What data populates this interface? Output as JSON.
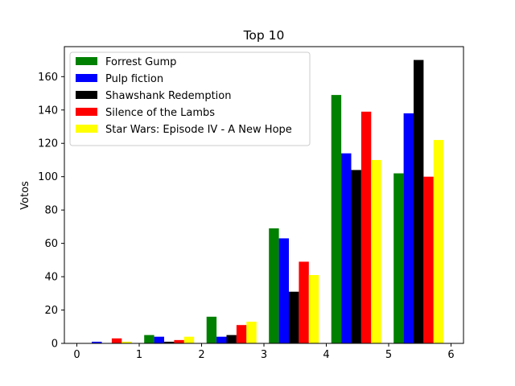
{
  "chart_data": {
    "type": "bar",
    "title": "Top 10",
    "xlabel": "",
    "ylabel": "Votos",
    "xlim": [
      -0.2,
      6.2
    ],
    "ylim": [
      0,
      178
    ],
    "xticks": [
      0,
      1,
      2,
      3,
      4,
      5,
      6
    ],
    "yticks": [
      0,
      20,
      40,
      60,
      80,
      100,
      120,
      140,
      160
    ],
    "bar_width": 0.16,
    "group_positions": [
      0,
      1,
      2,
      3,
      4,
      5
    ],
    "grid": false,
    "legend_position": "upper-left",
    "series": [
      {
        "name": "Forrest Gump",
        "color": "#008000",
        "offset": 0.16,
        "values": [
          0,
          5,
          16,
          69,
          149,
          102
        ]
      },
      {
        "name": "Pulp fiction",
        "color": "#0000ff",
        "offset": 0.32,
        "values": [
          1,
          4,
          4,
          63,
          114,
          138
        ]
      },
      {
        "name": "Shawshank Redemption",
        "color": "#000000",
        "offset": 0.48,
        "values": [
          0,
          1,
          5,
          31,
          104,
          170
        ]
      },
      {
        "name": "Silence of the Lambs",
        "color": "#ff0000",
        "offset": 0.64,
        "values": [
          3,
          2,
          11,
          49,
          139,
          100
        ]
      },
      {
        "name": "Star Wars: Episode IV - A New Hope",
        "color": "#ffff00",
        "offset": 0.8,
        "values": [
          1,
          4,
          13,
          41,
          110,
          122
        ]
      }
    ]
  }
}
